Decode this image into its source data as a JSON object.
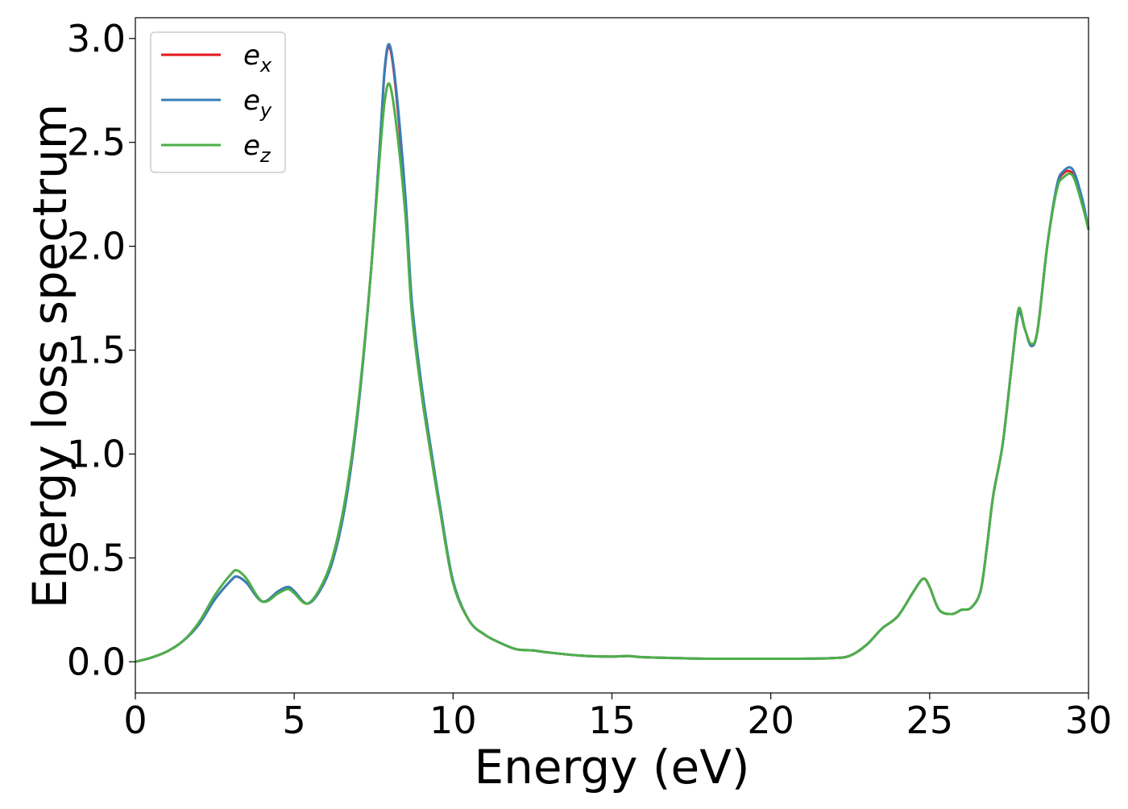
{
  "chart_data": {
    "type": "line",
    "xlabel": "Energy (eV)",
    "ylabel": "Energy loss spectrum",
    "xlim": [
      0,
      30
    ],
    "ylim": [
      -0.15,
      3.1
    ],
    "x_ticks": [
      0,
      5,
      10,
      15,
      20,
      25,
      30
    ],
    "x_tick_labels": [
      "0",
      "5",
      "10",
      "15",
      "20",
      "25",
      "30"
    ],
    "y_ticks": [
      0.0,
      0.5,
      1.0,
      1.5,
      2.0,
      2.5,
      3.0
    ],
    "y_tick_labels": [
      "0.0",
      "0.5",
      "1.0",
      "1.5",
      "2.0",
      "2.5",
      "3.0"
    ],
    "grid": false,
    "legend_position": "top-left",
    "series": [
      {
        "name": "e_x",
        "label_base": "e",
        "label_sub": "x",
        "color": "#e41a1c",
        "x": [
          0,
          0.5,
          1.0,
          1.5,
          2.0,
          2.5,
          3.0,
          3.2,
          3.5,
          4.0,
          4.5,
          4.8,
          5.0,
          5.4,
          5.8,
          6.2,
          6.6,
          7.0,
          7.4,
          7.7,
          7.85,
          8.0,
          8.2,
          8.5,
          8.7,
          9.0,
          9.3,
          9.6,
          10.0,
          10.5,
          11.0,
          11.5,
          12.0,
          12.5,
          13.0,
          14.0,
          15.0,
          15.5,
          16.0,
          17.0,
          18.0,
          19.0,
          20.0,
          21.0,
          22.0,
          22.5,
          23.0,
          23.5,
          24.0,
          24.5,
          24.8,
          25.0,
          25.3,
          25.7,
          26.0,
          26.3,
          26.6,
          26.8,
          27.0,
          27.3,
          27.6,
          27.8,
          28.0,
          28.2,
          28.4,
          28.7,
          29.0,
          29.2,
          29.5,
          29.8,
          30.0
        ],
        "y": [
          0.0,
          0.02,
          0.05,
          0.1,
          0.18,
          0.3,
          0.39,
          0.41,
          0.38,
          0.29,
          0.34,
          0.36,
          0.34,
          0.28,
          0.34,
          0.48,
          0.75,
          1.2,
          1.85,
          2.5,
          2.85,
          2.96,
          2.75,
          2.2,
          1.7,
          1.3,
          1.0,
          0.72,
          0.38,
          0.2,
          0.13,
          0.09,
          0.06,
          0.055,
          0.045,
          0.03,
          0.025,
          0.028,
          0.022,
          0.018,
          0.015,
          0.015,
          0.015,
          0.015,
          0.018,
          0.03,
          0.08,
          0.16,
          0.22,
          0.34,
          0.4,
          0.36,
          0.25,
          0.23,
          0.25,
          0.26,
          0.34,
          0.55,
          0.8,
          1.05,
          1.45,
          1.68,
          1.6,
          1.52,
          1.6,
          2.0,
          2.28,
          2.35,
          2.35,
          2.22,
          2.08
        ]
      },
      {
        "name": "e_y",
        "label_base": "e",
        "label_sub": "y",
        "color": "#377eb8",
        "x": [
          0,
          0.5,
          1.0,
          1.5,
          2.0,
          2.5,
          3.0,
          3.2,
          3.5,
          4.0,
          4.5,
          4.8,
          5.0,
          5.4,
          5.8,
          6.2,
          6.6,
          7.0,
          7.4,
          7.7,
          7.85,
          8.0,
          8.2,
          8.5,
          8.7,
          9.0,
          9.3,
          9.6,
          10.0,
          10.5,
          11.0,
          11.5,
          12.0,
          12.5,
          13.0,
          14.0,
          15.0,
          15.5,
          16.0,
          17.0,
          18.0,
          19.0,
          20.0,
          21.0,
          22.0,
          22.5,
          23.0,
          23.5,
          24.0,
          24.5,
          24.8,
          25.0,
          25.3,
          25.7,
          26.0,
          26.3,
          26.6,
          26.8,
          27.0,
          27.3,
          27.6,
          27.8,
          28.0,
          28.2,
          28.4,
          28.7,
          29.0,
          29.2,
          29.5,
          29.8,
          30.0
        ],
        "y": [
          0.0,
          0.02,
          0.05,
          0.1,
          0.18,
          0.3,
          0.39,
          0.41,
          0.38,
          0.29,
          0.34,
          0.36,
          0.34,
          0.28,
          0.34,
          0.48,
          0.75,
          1.2,
          1.85,
          2.5,
          2.86,
          2.97,
          2.77,
          2.24,
          1.74,
          1.34,
          1.03,
          0.74,
          0.39,
          0.2,
          0.13,
          0.09,
          0.06,
          0.055,
          0.045,
          0.03,
          0.025,
          0.028,
          0.022,
          0.018,
          0.015,
          0.015,
          0.015,
          0.015,
          0.018,
          0.03,
          0.08,
          0.16,
          0.22,
          0.34,
          0.4,
          0.36,
          0.25,
          0.23,
          0.25,
          0.26,
          0.34,
          0.55,
          0.8,
          1.05,
          1.45,
          1.68,
          1.6,
          1.52,
          1.6,
          2.0,
          2.29,
          2.36,
          2.37,
          2.23,
          2.08
        ]
      },
      {
        "name": "e_z",
        "label_base": "e",
        "label_sub": "z",
        "color": "#4daf4a",
        "x": [
          0,
          0.5,
          1.0,
          1.5,
          2.0,
          2.5,
          3.0,
          3.2,
          3.5,
          4.0,
          4.5,
          4.8,
          5.0,
          5.4,
          5.8,
          6.2,
          6.6,
          7.0,
          7.4,
          7.7,
          7.85,
          8.0,
          8.2,
          8.5,
          8.7,
          9.0,
          9.3,
          9.6,
          10.0,
          10.5,
          11.0,
          11.5,
          12.0,
          12.5,
          13.0,
          14.0,
          15.0,
          15.5,
          16.0,
          17.0,
          18.0,
          19.0,
          20.0,
          21.0,
          22.0,
          22.5,
          23.0,
          23.5,
          24.0,
          24.5,
          24.8,
          25.0,
          25.3,
          25.7,
          26.0,
          26.3,
          26.6,
          26.8,
          27.0,
          27.3,
          27.6,
          27.8,
          28.0,
          28.2,
          28.4,
          28.7,
          29.0,
          29.2,
          29.5,
          29.8,
          30.0
        ],
        "y": [
          0.0,
          0.02,
          0.05,
          0.1,
          0.19,
          0.32,
          0.42,
          0.44,
          0.4,
          0.29,
          0.33,
          0.35,
          0.33,
          0.28,
          0.35,
          0.5,
          0.78,
          1.22,
          1.85,
          2.45,
          2.7,
          2.78,
          2.6,
          2.15,
          1.68,
          1.3,
          1.0,
          0.72,
          0.38,
          0.2,
          0.13,
          0.09,
          0.06,
          0.055,
          0.045,
          0.03,
          0.025,
          0.028,
          0.022,
          0.018,
          0.015,
          0.015,
          0.015,
          0.015,
          0.018,
          0.03,
          0.08,
          0.16,
          0.22,
          0.34,
          0.4,
          0.36,
          0.25,
          0.23,
          0.25,
          0.26,
          0.34,
          0.55,
          0.8,
          1.05,
          1.45,
          1.7,
          1.6,
          1.53,
          1.6,
          2.0,
          2.27,
          2.33,
          2.34,
          2.2,
          2.08
        ]
      }
    ]
  }
}
